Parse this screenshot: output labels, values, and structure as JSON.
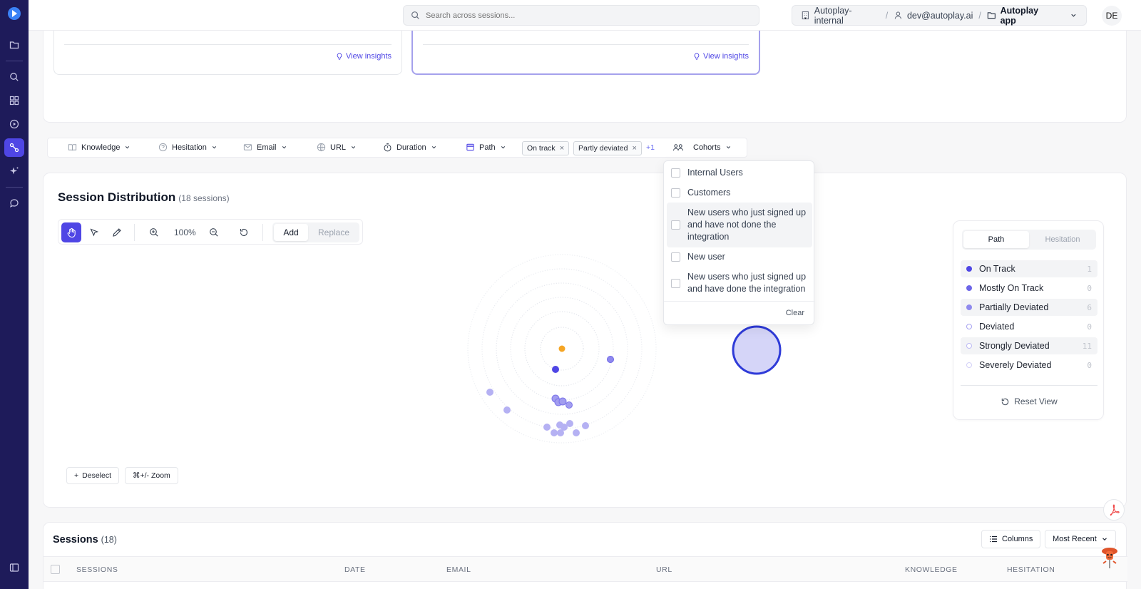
{
  "search": {
    "placeholder": "Search across sessions..."
  },
  "breadcrumb": {
    "org": "Autoplay-internal",
    "user": "dev@autoplay.ai",
    "app": "Autoplay app"
  },
  "avatar": {
    "initials": "DE"
  },
  "insight_cards": [
    {
      "link": "View insights"
    },
    {
      "link": "View insights"
    }
  ],
  "filters": {
    "knowledge": "Knowledge",
    "hesitation": "Hesitation",
    "email": "Email",
    "url": "URL",
    "duration": "Duration",
    "path": "Path",
    "chips": [
      "On track",
      "Partly deviated"
    ],
    "more": "+1",
    "cohorts": "Cohorts"
  },
  "distribution": {
    "title": "Session Distribution",
    "count": "(18 sessions)",
    "zoom": "100%",
    "add": "Add",
    "replace": "Replace",
    "deselect": "Deselect",
    "zoom_hint": "⌘+/- Zoom"
  },
  "cohort_menu": {
    "options": [
      "Internal Users",
      "Customers",
      "New users who just signed up and have not done the integration",
      "New user",
      "New users who just signed up and have done the integration"
    ],
    "clear": "Clear"
  },
  "legend": {
    "tabs": [
      "Path",
      "Hesitation"
    ],
    "items": [
      {
        "label": "On Track",
        "count": "1",
        "color": "#4f46e5"
      },
      {
        "label": "Mostly On Track",
        "count": "0",
        "color": "#6d66e8"
      },
      {
        "label": "Partially Deviated",
        "count": "6",
        "color": "#8f89ee"
      },
      {
        "label": "Deviated",
        "count": "0",
        "color": "#a7a3f1"
      },
      {
        "label": "Strongly Deviated",
        "count": "11",
        "color": "#bdbaf4"
      },
      {
        "label": "Severely Deviated",
        "count": "0",
        "color": "#d3d1f8"
      }
    ],
    "reset": "Reset View"
  },
  "sessions": {
    "title": "Sessions",
    "count": "(18)",
    "columns_btn": "Columns",
    "sort": "Most Recent",
    "headers": [
      "SESSIONS",
      "DATE",
      "EMAIL",
      "URL",
      "KNOWLEDGE",
      "HESITATION"
    ]
  }
}
